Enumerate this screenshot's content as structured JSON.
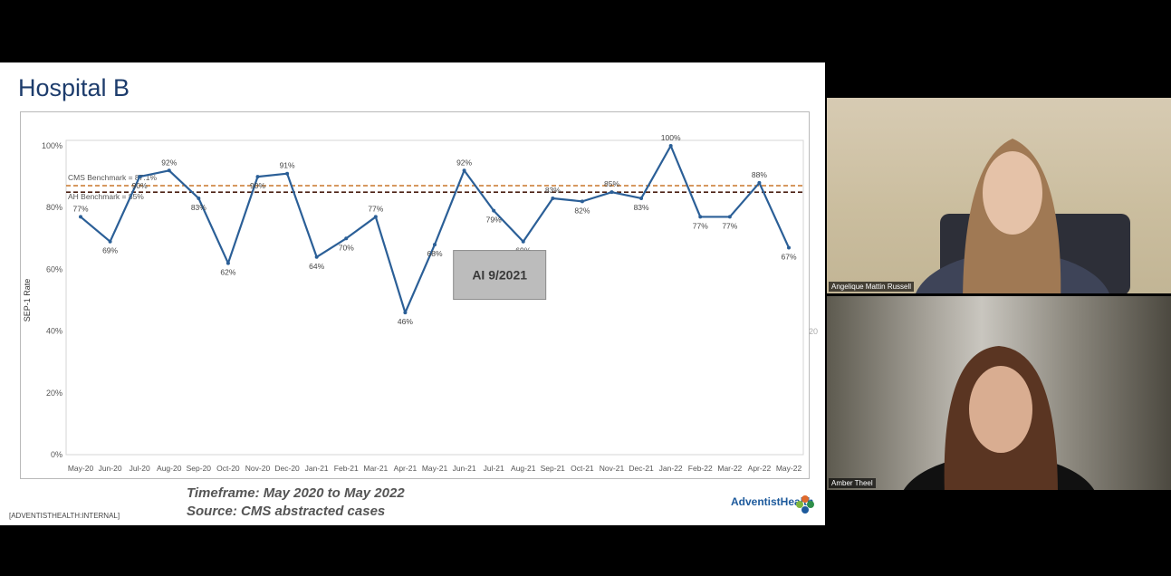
{
  "slide": {
    "title": "Hospital B",
    "timeframe": "Timeframe:  May 2020 to May 2022",
    "source": "Source: CMS abstracted cases",
    "classification": "[ADVENTISTHEALTH:INTERNAL]",
    "logo_text": "AdventistHealth",
    "edge_label": "20"
  },
  "chart_data": {
    "type": "line",
    "ylabel": "SEP-1 Rate",
    "ylim": [
      0,
      100
    ],
    "yticks": [
      "0%",
      "20%",
      "40%",
      "60%",
      "80%",
      "100%"
    ],
    "categories": [
      "May-20",
      "Jun-20",
      "Jul-20",
      "Aug-20",
      "Sep-20",
      "Oct-20",
      "Nov-20",
      "Dec-20",
      "Jan-21",
      "Feb-21",
      "Mar-21",
      "Apr-21",
      "May-21",
      "Jun-21",
      "Jul-21",
      "Aug-21",
      "Sep-21",
      "Oct-21",
      "Nov-21",
      "Dec-21",
      "Jan-22",
      "Feb-22",
      "Mar-22",
      "Apr-22",
      "May-22"
    ],
    "values": [
      77,
      69,
      90,
      92,
      83,
      62,
      90,
      91,
      64,
      70,
      77,
      46,
      68,
      92,
      79,
      69,
      83,
      82,
      85,
      83,
      100,
      77,
      77,
      88,
      67
    ],
    "labels": [
      "77%",
      "69%",
      "90%",
      "92%",
      "83%",
      "62%",
      "90%",
      "91%",
      "64%",
      "70%",
      "77%",
      "46%",
      "68%",
      "92%",
      "79%",
      "69%",
      "83%",
      "82%",
      "85%",
      "83%",
      "100%",
      "77%",
      "77%",
      "88%",
      "67%"
    ],
    "benchmarks": [
      {
        "label": "CMS Benchmark = 87.1%",
        "value": 87.1,
        "color": "#c8772a"
      },
      {
        "label": "AH Benchmark = 85%",
        "value": 85,
        "color": "#4a1f12"
      }
    ],
    "annotation": "AI 9/2021",
    "line_color": "#2b5f97",
    "grid": false
  },
  "participants": [
    {
      "name": "Angelique Mattin Russell"
    },
    {
      "name": "Amber Theel"
    }
  ]
}
